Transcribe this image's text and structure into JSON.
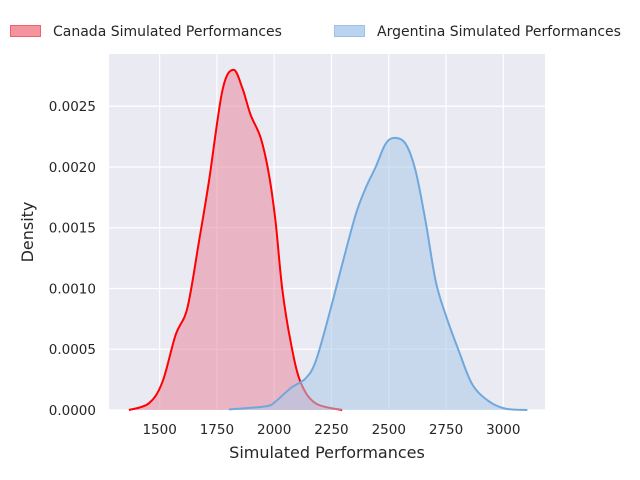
{
  "chart_data": {
    "type": "area",
    "title": "",
    "xlabel": "Simulated Performances",
    "ylabel": "Density",
    "xlim": [
      1279,
      3182
    ],
    "ylim": [
      0,
      0.00293
    ],
    "xticks": [
      1500,
      1750,
      2000,
      2250,
      2500,
      2750,
      3000
    ],
    "xtick_labels": [
      "1500",
      "1750",
      "2000",
      "2250",
      "2500",
      "2750",
      "3000"
    ],
    "yticks": [
      0,
      0.0005,
      0.001,
      0.0015,
      0.002,
      0.0025
    ],
    "ytick_labels": [
      "0.0000",
      "0.0005",
      "0.0010",
      "0.0015",
      "0.0020",
      "0.0025"
    ],
    "grid": true,
    "legend_placement": "top (outside)",
    "series": [
      {
        "name": "Canada Simulated Performances",
        "line_color": "#ff0000",
        "fill_color": "#e8889e",
        "x": [
          1366,
          1453,
          1512,
          1570,
          1621,
          1672,
          1715,
          1774,
          1822,
          1861,
          1897,
          1941,
          1977,
          2006,
          2035,
          2072,
          2115,
          2181,
          2297
        ],
        "y": [
          0,
          5.5e-05,
          0.00023,
          0.00062,
          0.00084,
          0.00139,
          0.00188,
          0.00263,
          0.0028,
          0.00265,
          0.00243,
          0.00224,
          0.00194,
          0.00155,
          0.001,
          0.00056,
          0.00023,
          5.5e-05,
          0
        ]
      },
      {
        "name": "Argentina Simulated Performances",
        "line_color": "#6fa8dc",
        "fill_color": "#a9c8ea",
        "x": [
          1803,
          1963,
          2006,
          2072,
          2137,
          2181,
          2239,
          2297,
          2356,
          2400,
          2443,
          2486,
          2526,
          2574,
          2617,
          2661,
          2705,
          2749,
          2807,
          2865,
          2938,
          3011,
          3105
        ],
        "y": [
          5e-06,
          3e-05,
          7e-05,
          0.00018,
          0.00026,
          0.0004,
          0.00078,
          0.0012,
          0.00161,
          0.00183,
          0.002,
          0.00219,
          0.00224,
          0.00219,
          0.00197,
          0.00155,
          0.00106,
          0.00078,
          0.00048,
          0.00021,
          7e-05,
          1e-05,
          0
        ]
      }
    ]
  }
}
